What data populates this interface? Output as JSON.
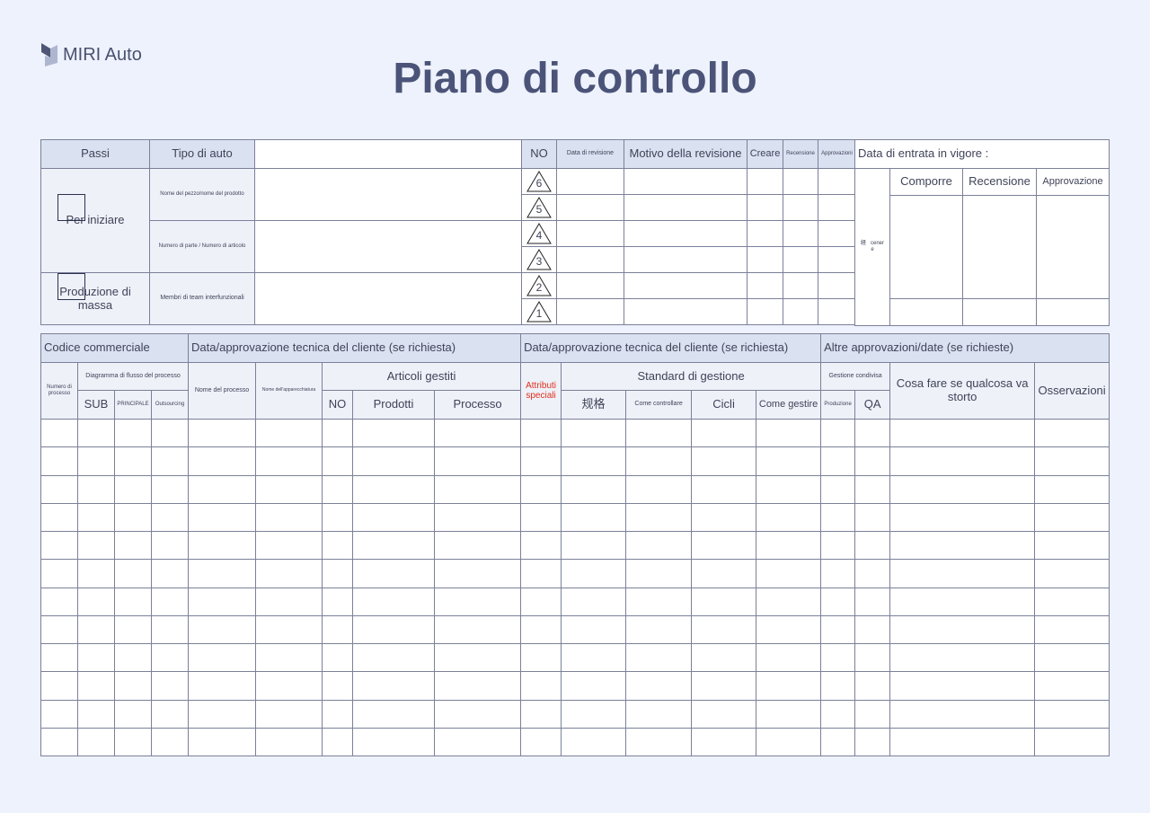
{
  "brand": {
    "name": "MIRI Auto",
    "logo_icon": "folded-ribbon-logo"
  },
  "title": "Piano di controllo",
  "header_left": {
    "steps": "Passi",
    "car_type": "Tipo di auto",
    "car_type_value": "",
    "step_items": [
      "Per iniziare",
      "Produzione di massa"
    ],
    "fields": [
      {
        "label": "Nome del pezzo/nome del prodotto",
        "value": ""
      },
      {
        "label": "Numero di parte / Numero di articolo",
        "value": ""
      },
      {
        "label": "Membri di team interfunzionali",
        "value": ""
      }
    ]
  },
  "revisions": {
    "columns": [
      "NO",
      "Data di revisione",
      "Motivo della revisione",
      "Creare",
      "Recensione",
      "Approvazioni"
    ],
    "numbers": [
      "6",
      "5",
      "4",
      "3",
      "2",
      "1"
    ]
  },
  "signoff": {
    "effective_date": "Data di entrata in vigore :",
    "side_label_1": "経",
    "side_label_2": "cener",
    "side_label_3": "e",
    "columns": [
      "Comporre",
      "Recensione",
      "Approvazione"
    ]
  },
  "main_table": {
    "groups": [
      "Codice commerciale",
      "Data/approvazione tecnica del cliente (se richiesta)",
      "Data/approvazione tecnica del cliente (se richiesta)",
      "Altre approvazioni/date (se richieste)"
    ],
    "process_number": "Numero di processo",
    "flow_diagram": "Diagramma di flusso del processo",
    "sub": "SUB",
    "main": "PRINCIPALE",
    "outsourcing": "Outsourcing",
    "process_name": "Nome del processo",
    "equipment_name": "Nome dell'apparecchiatura",
    "managed_items": "Articoli gestiti",
    "no": "NO",
    "products": "Prodotti",
    "process": "Processo",
    "special_attributes": "Attributi speciali",
    "management_standard": "Standard di gestione",
    "spec": "规格",
    "how_to_check": "Come controllare",
    "cycles": "Cicli",
    "how_to_manage": "Come gestire",
    "shared_management": "Gestione condivisa",
    "production": "Produzione",
    "qa": "QA",
    "what_if_wrong": "Cosa fare se qualcosa va storto",
    "notes": "Osservazioni",
    "row_count": 12
  },
  "colors": {
    "header_bg": "#dae1f1",
    "label_bg": "#eef1f8",
    "page_bg": "#eef2fc",
    "title": "#4b5478",
    "special": "#e0301c"
  }
}
